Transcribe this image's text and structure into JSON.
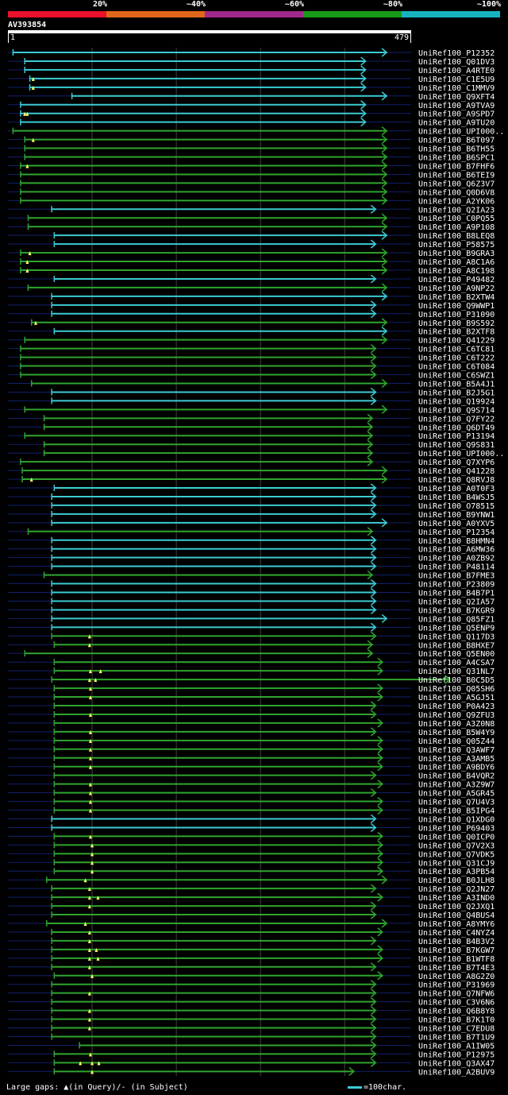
{
  "header": {
    "percent_labels": [
      "20%",
      "~40%",
      "~60%",
      "~80%",
      "~100%"
    ],
    "identity_colors": [
      "#e8102a",
      "#e0661a",
      "#a0288c",
      "#189a18",
      "#17b4c0"
    ]
  },
  "query": {
    "id": "AV393854",
    "start": "1",
    "end": "479"
  },
  "colors": {
    "cyan": "#3ccbd4",
    "green": "#2fa52f",
    "background": "#000000",
    "grid": "#444444",
    "guide": "#10206a",
    "gap_marker": "#ffff66"
  },
  "hits": [
    {
      "id": "UniRef100_P12352",
      "color": "cyan",
      "s": 6,
      "e": 449,
      "arrow": true,
      "gaps": []
    },
    {
      "id": "UniRef100_Q01DV3",
      "color": "cyan",
      "s": 20,
      "e": 424,
      "arrow": true,
      "gaps": []
    },
    {
      "id": "UniRef100_A4RTE0",
      "color": "cyan",
      "s": 20,
      "e": 424,
      "arrow": true,
      "gaps": []
    },
    {
      "id": "UniRef100_C1E5U9",
      "color": "cyan",
      "s": 26,
      "e": 424,
      "arrow": true,
      "gaps": [
        30
      ]
    },
    {
      "id": "UniRef100_C1MMV9",
      "color": "cyan",
      "s": 26,
      "e": 424,
      "arrow": true,
      "gaps": [
        30
      ]
    },
    {
      "id": "UniRef100_Q9XFT4",
      "color": "cyan",
      "s": 76,
      "e": 449,
      "arrow": true,
      "gaps": []
    },
    {
      "id": "UniRef100_A9TVA9",
      "color": "cyan",
      "s": 15,
      "e": 424,
      "arrow": true,
      "gaps": []
    },
    {
      "id": "UniRef100_A9SPD7",
      "color": "cyan",
      "s": 15,
      "e": 424,
      "arrow": true,
      "gaps": [
        20,
        23
      ]
    },
    {
      "id": "UniRef100_A9TU20",
      "color": "cyan",
      "s": 15,
      "e": 424,
      "arrow": true,
      "gaps": []
    },
    {
      "id": "UniRef100_UPI000..",
      "color": "green",
      "s": 6,
      "e": 449,
      "arrow": true,
      "gaps": []
    },
    {
      "id": "UniRef100_B6T097",
      "color": "green",
      "s": 20,
      "e": 449,
      "arrow": true,
      "gaps": [
        30
      ]
    },
    {
      "id": "UniRef100_B6TH55",
      "color": "green",
      "s": 20,
      "e": 449,
      "arrow": true,
      "gaps": []
    },
    {
      "id": "UniRef100_B6SPC1",
      "color": "green",
      "s": 20,
      "e": 449,
      "arrow": true,
      "gaps": []
    },
    {
      "id": "UniRef100_B7FHF6",
      "color": "green",
      "s": 15,
      "e": 449,
      "arrow": true,
      "gaps": [
        23
      ]
    },
    {
      "id": "UniRef100_B6TEI9",
      "color": "green",
      "s": 15,
      "e": 449,
      "arrow": true,
      "gaps": []
    },
    {
      "id": "UniRef100_Q6Z3V7",
      "color": "green",
      "s": 15,
      "e": 449,
      "arrow": true,
      "gaps": []
    },
    {
      "id": "UniRef100_Q0D6V8",
      "color": "green",
      "s": 15,
      "e": 449,
      "arrow": true,
      "gaps": []
    },
    {
      "id": "UniRef100_A2YK06",
      "color": "green",
      "s": 15,
      "e": 449,
      "arrow": true,
      "gaps": []
    },
    {
      "id": "UniRef100_Q2IA23",
      "color": "cyan",
      "s": 52,
      "e": 436,
      "arrow": true,
      "gaps": []
    },
    {
      "id": "UniRef100_C0PQ55",
      "color": "green",
      "s": 24,
      "e": 449,
      "arrow": true,
      "gaps": []
    },
    {
      "id": "UniRef100_A9P108",
      "color": "green",
      "s": 24,
      "e": 449,
      "arrow": true,
      "gaps": []
    },
    {
      "id": "UniRef100_B8LEQ8",
      "color": "cyan",
      "s": 55,
      "e": 449,
      "arrow": true,
      "gaps": []
    },
    {
      "id": "UniRef100_P58575",
      "color": "cyan",
      "s": 55,
      "e": 436,
      "arrow": true,
      "gaps": []
    },
    {
      "id": "UniRef100_B9GRA3",
      "color": "green",
      "s": 15,
      "e": 449,
      "arrow": true,
      "gaps": [
        26
      ]
    },
    {
      "id": "UniRef100_A8C1A6",
      "color": "green",
      "s": 15,
      "e": 449,
      "arrow": true,
      "gaps": [
        23
      ]
    },
    {
      "id": "UniRef100_A8C198",
      "color": "green",
      "s": 15,
      "e": 449,
      "arrow": true,
      "gaps": [
        23
      ]
    },
    {
      "id": "UniRef100_P49482",
      "color": "cyan",
      "s": 55,
      "e": 436,
      "arrow": true,
      "gaps": []
    },
    {
      "id": "UniRef100_A9NP22",
      "color": "green",
      "s": 24,
      "e": 449,
      "arrow": true,
      "gaps": []
    },
    {
      "id": "UniRef100_B2XTW4",
      "color": "cyan",
      "s": 52,
      "e": 449,
      "arrow": true,
      "gaps": []
    },
    {
      "id": "UniRef100_Q9WWP1",
      "color": "cyan",
      "s": 52,
      "e": 436,
      "arrow": true,
      "gaps": []
    },
    {
      "id": "UniRef100_P31090",
      "color": "cyan",
      "s": 52,
      "e": 436,
      "arrow": true,
      "gaps": []
    },
    {
      "id": "UniRef100_B9S592",
      "color": "green",
      "s": 28,
      "e": 449,
      "arrow": true,
      "gaps": [
        33
      ]
    },
    {
      "id": "UniRef100_B2XTF8",
      "color": "cyan",
      "s": 55,
      "e": 449,
      "arrow": true,
      "gaps": []
    },
    {
      "id": "UniRef100_Q41229",
      "color": "green",
      "s": 20,
      "e": 449,
      "arrow": true,
      "gaps": []
    },
    {
      "id": "UniRef100_C6TC81",
      "color": "green",
      "s": 15,
      "e": 436,
      "arrow": true,
      "gaps": []
    },
    {
      "id": "UniRef100_C6T222",
      "color": "green",
      "s": 15,
      "e": 436,
      "arrow": true,
      "gaps": []
    },
    {
      "id": "UniRef100_C6T084",
      "color": "green",
      "s": 15,
      "e": 436,
      "arrow": true,
      "gaps": []
    },
    {
      "id": "UniRef100_C6SWZ1",
      "color": "green",
      "s": 15,
      "e": 436,
      "arrow": true,
      "gaps": []
    },
    {
      "id": "UniRef100_B5A4J1",
      "color": "green",
      "s": 28,
      "e": 449,
      "arrow": true,
      "gaps": []
    },
    {
      "id": "UniRef100_B2J5G1",
      "color": "cyan",
      "s": 52,
      "e": 436,
      "arrow": true,
      "gaps": []
    },
    {
      "id": "UniRef100_Q19924",
      "color": "cyan",
      "s": 52,
      "e": 436,
      "arrow": true,
      "gaps": []
    },
    {
      "id": "UniRef100_Q9S714",
      "color": "green",
      "s": 20,
      "e": 449,
      "arrow": true,
      "gaps": []
    },
    {
      "id": "UniRef100_Q7FY22",
      "color": "green",
      "s": 43,
      "e": 432,
      "arrow": true,
      "gaps": []
    },
    {
      "id": "UniRef100_Q6DT49",
      "color": "green",
      "s": 43,
      "e": 432,
      "arrow": true,
      "gaps": []
    },
    {
      "id": "UniRef100_P13194",
      "color": "green",
      "s": 20,
      "e": 432,
      "arrow": true,
      "gaps": []
    },
    {
      "id": "UniRef100_Q9S831",
      "color": "green",
      "s": 43,
      "e": 432,
      "arrow": true,
      "gaps": []
    },
    {
      "id": "UniRef100_UPI000..",
      "color": "green",
      "s": 43,
      "e": 432,
      "arrow": true,
      "gaps": []
    },
    {
      "id": "UniRef100_Q7XYP6",
      "color": "green",
      "s": 15,
      "e": 432,
      "arrow": true,
      "gaps": []
    },
    {
      "id": "UniRef100_Q41228",
      "color": "green",
      "s": 17,
      "e": 449,
      "arrow": true,
      "gaps": []
    },
    {
      "id": "UniRef100_Q8RVJ8",
      "color": "green",
      "s": 17,
      "e": 449,
      "arrow": true,
      "gaps": [
        28
      ]
    },
    {
      "id": "UniRef100_A0T0F3",
      "color": "cyan",
      "s": 55,
      "e": 436,
      "arrow": true,
      "gaps": []
    },
    {
      "id": "UniRef100_B4WSJ5",
      "color": "cyan",
      "s": 52,
      "e": 436,
      "arrow": true,
      "gaps": []
    },
    {
      "id": "UniRef100_O78515",
      "color": "cyan",
      "s": 52,
      "e": 436,
      "arrow": true,
      "gaps": []
    },
    {
      "id": "UniRef100_B9YNW1",
      "color": "cyan",
      "s": 52,
      "e": 436,
      "arrow": true,
      "gaps": []
    },
    {
      "id": "UniRef100_A0YXV5",
      "color": "cyan",
      "s": 52,
      "e": 449,
      "arrow": true,
      "gaps": []
    },
    {
      "id": "UniRef100_P12354",
      "color": "green",
      "s": 24,
      "e": 432,
      "arrow": true,
      "gaps": []
    },
    {
      "id": "UniRef100_B8HMN4",
      "color": "cyan",
      "s": 52,
      "e": 436,
      "arrow": true,
      "gaps": []
    },
    {
      "id": "UniRef100_A6MW36",
      "color": "cyan",
      "s": 52,
      "e": 436,
      "arrow": true,
      "gaps": []
    },
    {
      "id": "UniRef100_A0ZB92",
      "color": "cyan",
      "s": 52,
      "e": 436,
      "arrow": true,
      "gaps": []
    },
    {
      "id": "UniRef100_P48114",
      "color": "cyan",
      "s": 52,
      "e": 436,
      "arrow": true,
      "gaps": []
    },
    {
      "id": "UniRef100_B7FME3",
      "color": "green",
      "s": 43,
      "e": 432,
      "arrow": true,
      "gaps": []
    },
    {
      "id": "UniRef100_P23809",
      "color": "cyan",
      "s": 52,
      "e": 436,
      "arrow": true,
      "gaps": []
    },
    {
      "id": "UniRef100_B4B7P1",
      "color": "cyan",
      "s": 52,
      "e": 436,
      "arrow": true,
      "gaps": []
    },
    {
      "id": "UniRef100_Q2IA57",
      "color": "cyan",
      "s": 52,
      "e": 436,
      "arrow": true,
      "gaps": []
    },
    {
      "id": "UniRef100_B7KGR9",
      "color": "cyan",
      "s": 52,
      "e": 436,
      "arrow": true,
      "gaps": []
    },
    {
      "id": "UniRef100_Q85FZ1",
      "color": "cyan",
      "s": 52,
      "e": 449,
      "arrow": true,
      "gaps": []
    },
    {
      "id": "UniRef100_Q5ENP9",
      "color": "cyan",
      "s": 52,
      "e": 436,
      "arrow": true,
      "gaps": []
    },
    {
      "id": "UniRef100_Q117D3",
      "color": "green",
      "s": 52,
      "e": 436,
      "arrow": true,
      "gaps": [
        97
      ]
    },
    {
      "id": "UniRef100_B8HXE7",
      "color": "green",
      "s": 55,
      "e": 432,
      "arrow": true,
      "gaps": [
        97
      ]
    },
    {
      "id": "UniRef100_Q5EN00",
      "color": "green",
      "s": 20,
      "e": 432,
      "arrow": true,
      "gaps": []
    },
    {
      "id": "UniRef100_A4CSA7",
      "color": "green",
      "s": 55,
      "e": 444,
      "arrow": true,
      "gaps": []
    },
    {
      "id": "UniRef100_Q31NL7",
      "color": "green",
      "s": 55,
      "e": 444,
      "arrow": true,
      "gaps": [
        98,
        110
      ]
    },
    {
      "id": "UniRef100_B0C5D5",
      "color": "green",
      "s": 52,
      "e": 524,
      "arrow": true,
      "gaps": [
        97,
        104
      ]
    },
    {
      "id": "UniRef100_Q05SH6",
      "color": "green",
      "s": 55,
      "e": 444,
      "arrow": true,
      "gaps": [
        98
      ]
    },
    {
      "id": "UniRef100_A5GJ51",
      "color": "green",
      "s": 55,
      "e": 444,
      "arrow": true,
      "gaps": [
        98
      ]
    },
    {
      "id": "UniRef100_P0A423",
      "color": "green",
      "s": 55,
      "e": 436,
      "arrow": true,
      "gaps": []
    },
    {
      "id": "UniRef100_Q9ZFU3",
      "color": "green",
      "s": 55,
      "e": 436,
      "arrow": true,
      "gaps": [
        98
      ]
    },
    {
      "id": "UniRef100_A3Z0N8",
      "color": "green",
      "s": 55,
      "e": 444,
      "arrow": true,
      "gaps": []
    },
    {
      "id": "UniRef100_B5W4Y9",
      "color": "green",
      "s": 55,
      "e": 436,
      "arrow": true,
      "gaps": [
        98
      ]
    },
    {
      "id": "UniRef100_Q05Z44",
      "color": "green",
      "s": 55,
      "e": 444,
      "arrow": true,
      "gaps": [
        98
      ]
    },
    {
      "id": "UniRef100_Q3AWF7",
      "color": "green",
      "s": 55,
      "e": 444,
      "arrow": true,
      "gaps": [
        98
      ]
    },
    {
      "id": "UniRef100_A3AMB5",
      "color": "green",
      "s": 55,
      "e": 444,
      "arrow": true,
      "gaps": [
        98
      ]
    },
    {
      "id": "UniRef100_A9BDY6",
      "color": "green",
      "s": 55,
      "e": 444,
      "arrow": true,
      "gaps": [
        98
      ]
    },
    {
      "id": "UniRef100_B4VQR2",
      "color": "green",
      "s": 55,
      "e": 436,
      "arrow": true,
      "gaps": []
    },
    {
      "id": "UniRef100_A3Z9W7",
      "color": "green",
      "s": 55,
      "e": 444,
      "arrow": true,
      "gaps": [
        98
      ]
    },
    {
      "id": "UniRef100_A5GR45",
      "color": "green",
      "s": 55,
      "e": 436,
      "arrow": true,
      "gaps": [
        98
      ]
    },
    {
      "id": "UniRef100_Q7U4V3",
      "color": "green",
      "s": 55,
      "e": 444,
      "arrow": true,
      "gaps": [
        98
      ]
    },
    {
      "id": "UniRef100_B5IPG4",
      "color": "green",
      "s": 55,
      "e": 444,
      "arrow": true,
      "gaps": [
        98
      ]
    },
    {
      "id": "UniRef100_Q1XDG0",
      "color": "cyan",
      "s": 52,
      "e": 436,
      "arrow": true,
      "gaps": []
    },
    {
      "id": "UniRef100_P69403",
      "color": "cyan",
      "s": 52,
      "e": 436,
      "arrow": true,
      "gaps": []
    },
    {
      "id": "UniRef100_Q0ICP0",
      "color": "green",
      "s": 55,
      "e": 444,
      "arrow": true,
      "gaps": [
        98
      ]
    },
    {
      "id": "UniRef100_Q7V2X3",
      "color": "green",
      "s": 55,
      "e": 444,
      "arrow": true,
      "gaps": [
        100
      ]
    },
    {
      "id": "UniRef100_Q7VDK5",
      "color": "green",
      "s": 55,
      "e": 444,
      "arrow": true,
      "gaps": [
        100
      ]
    },
    {
      "id": "UniRef100_Q31CJ9",
      "color": "green",
      "s": 55,
      "e": 444,
      "arrow": true,
      "gaps": [
        100
      ]
    },
    {
      "id": "UniRef100_A3PB54",
      "color": "green",
      "s": 55,
      "e": 444,
      "arrow": true,
      "gaps": [
        100
      ]
    },
    {
      "id": "UniRef100_B0JLH8",
      "color": "green",
      "s": 46,
      "e": 449,
      "arrow": true,
      "gaps": [
        92
      ]
    },
    {
      "id": "UniRef100_Q2JN27",
      "color": "green",
      "s": 52,
      "e": 436,
      "arrow": true,
      "gaps": [
        97
      ]
    },
    {
      "id": "UniRef100_A3IND0",
      "color": "green",
      "s": 52,
      "e": 444,
      "arrow": true,
      "gaps": [
        97,
        107
      ]
    },
    {
      "id": "UniRef100_Q2JXQ1",
      "color": "green",
      "s": 52,
      "e": 436,
      "arrow": true,
      "gaps": [
        97
      ]
    },
    {
      "id": "UniRef100_Q4BUS4",
      "color": "green",
      "s": 52,
      "e": 436,
      "arrow": true,
      "gaps": []
    },
    {
      "id": "UniRef100_A8YMY6",
      "color": "green",
      "s": 46,
      "e": 449,
      "arrow": true,
      "gaps": [
        92
      ]
    },
    {
      "id": "UniRef100_C4NYZ4",
      "color": "green",
      "s": 52,
      "e": 444,
      "arrow": true,
      "gaps": [
        97
      ]
    },
    {
      "id": "UniRef100_B4B3V2",
      "color": "green",
      "s": 52,
      "e": 436,
      "arrow": true,
      "gaps": [
        97
      ]
    },
    {
      "id": "UniRef100_B7KGW7",
      "color": "green",
      "s": 52,
      "e": 444,
      "arrow": true,
      "gaps": [
        97,
        105
      ]
    },
    {
      "id": "UniRef100_B1WTF8",
      "color": "green",
      "s": 52,
      "e": 444,
      "arrow": true,
      "gaps": [
        97,
        107
      ]
    },
    {
      "id": "UniRef100_B7T4E3",
      "color": "green",
      "s": 52,
      "e": 436,
      "arrow": true,
      "gaps": [
        97
      ]
    },
    {
      "id": "UniRef100_A8G2Z0",
      "color": "green",
      "s": 55,
      "e": 444,
      "arrow": true,
      "gaps": [
        100
      ]
    },
    {
      "id": "UniRef100_P31969",
      "color": "green",
      "s": 52,
      "e": 436,
      "arrow": true,
      "gaps": []
    },
    {
      "id": "UniRef100_Q7NFW6",
      "color": "green",
      "s": 52,
      "e": 436,
      "arrow": true,
      "gaps": [
        97
      ]
    },
    {
      "id": "UniRef100_C3V6N6",
      "color": "green",
      "s": 52,
      "e": 436,
      "arrow": true,
      "gaps": []
    },
    {
      "id": "UniRef100_Q6B8Y8",
      "color": "green",
      "s": 52,
      "e": 436,
      "arrow": true,
      "gaps": [
        97
      ]
    },
    {
      "id": "UniRef100_B7K1T0",
      "color": "green",
      "s": 52,
      "e": 436,
      "arrow": true,
      "gaps": [
        97
      ]
    },
    {
      "id": "UniRef100_C7EDU8",
      "color": "green",
      "s": 52,
      "e": 436,
      "arrow": true,
      "gaps": [
        97
      ]
    },
    {
      "id": "UniRef100_B7T1U9",
      "color": "green",
      "s": 52,
      "e": 436,
      "arrow": true,
      "gaps": []
    },
    {
      "id": "UniRef100_A1IW05",
      "color": "green",
      "s": 85,
      "e": 436,
      "arrow": true,
      "gaps": []
    },
    {
      "id": "UniRef100_P12975",
      "color": "green",
      "s": 55,
      "e": 436,
      "arrow": true,
      "gaps": [
        98
      ]
    },
    {
      "id": "UniRef100_Q3AX47",
      "color": "green",
      "s": 55,
      "e": 436,
      "arrow": true,
      "gaps": [
        86,
        100,
        108
      ]
    },
    {
      "id": "UniRef100_A2BUV9",
      "color": "green",
      "s": 55,
      "e": 410,
      "arrow": true,
      "gaps": [
        100
      ]
    }
  ],
  "footer": {
    "large_gaps_label": "Large gaps:",
    "query_gap_symbol": "▲",
    "query_gap_text": "(in Query)/",
    "subject_gap_text": "- (in Subject)",
    "scale_text": "=100char."
  }
}
